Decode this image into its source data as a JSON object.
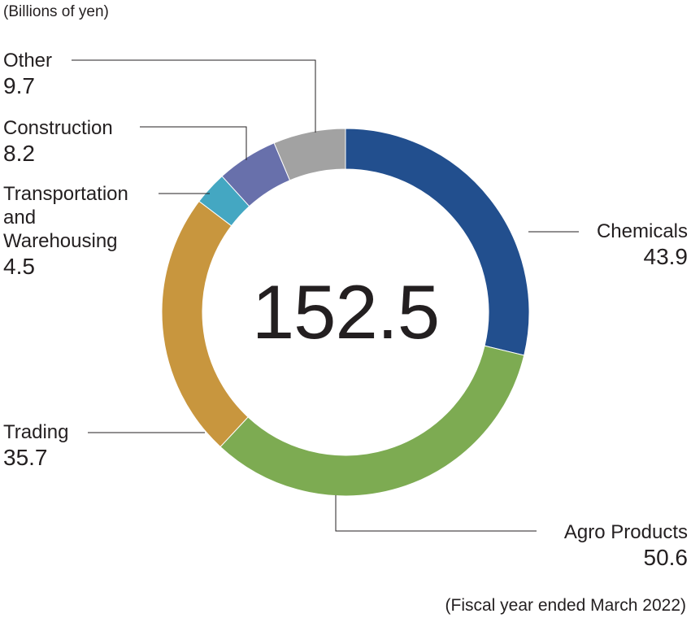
{
  "chart_data": {
    "type": "donut",
    "unit_note": "(Billions of yen)",
    "total": "152.5",
    "footnote": "(Fiscal year ended March 2022)",
    "segments": [
      {
        "name": "Chemicals",
        "value": 43.9,
        "value_label": "43.9",
        "color": "#224f8e"
      },
      {
        "name": "Agro Products",
        "value": 50.6,
        "value_label": "50.6",
        "color": "#7dab52"
      },
      {
        "name": "Trading",
        "value": 35.7,
        "value_label": "35.7",
        "color": "#c8963e"
      },
      {
        "name": "Transportation and Warehousing",
        "name_lines": [
          "Transportation",
          "and",
          "Warehousing"
        ],
        "value": 4.5,
        "value_label": "4.5",
        "color": "#44a7c2"
      },
      {
        "name": "Construction",
        "value": 8.2,
        "value_label": "8.2",
        "color": "#6870ab"
      },
      {
        "name": "Other",
        "value": 9.7,
        "value_label": "9.7",
        "color": "#a2a2a2"
      }
    ]
  }
}
